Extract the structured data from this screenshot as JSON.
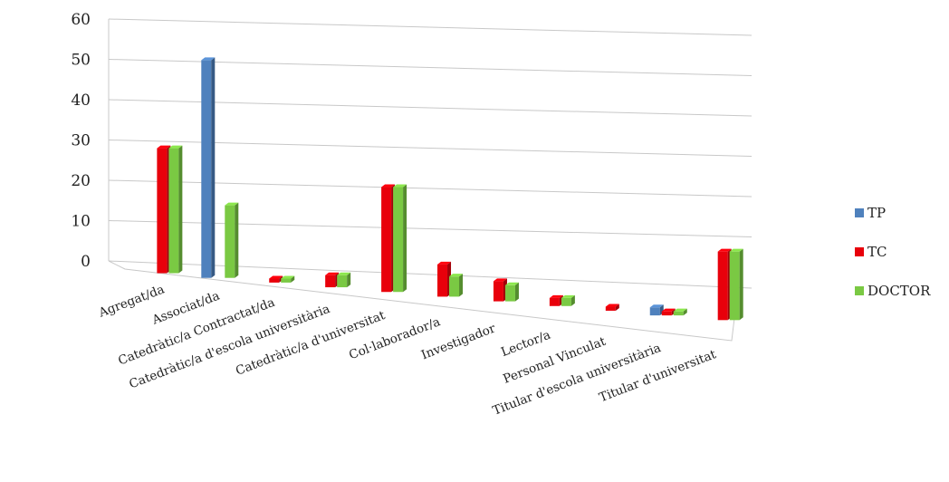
{
  "chart_data": {
    "type": "bar",
    "title": "",
    "xlabel": "",
    "ylabel": "",
    "ylim": [
      0,
      60
    ],
    "yticks": [
      0,
      10,
      20,
      30,
      40,
      50,
      60
    ],
    "grid": true,
    "legend_position": "right",
    "categories": [
      "Agregat/da",
      "Associat/da",
      "Catedràtic/a Contractat/da",
      "Catedràtic/a d'escola universitària",
      "Catedràtic/a d'universitat",
      "Col·laborador/a",
      "Investigador",
      "Lector/a",
      "Personal Vinculat",
      "Titular d'escola universitària",
      "Titular d'universitat"
    ],
    "series": [
      {
        "name": "TP",
        "color": "#4F81BD",
        "values": [
          0,
          54,
          0,
          0,
          0,
          0,
          0,
          0,
          0,
          2,
          0
        ]
      },
      {
        "name": "TC",
        "color": "#E8000B",
        "values": [
          31,
          0,
          1,
          3,
          26,
          8,
          5,
          2,
          1,
          1,
          17
        ]
      },
      {
        "name": "DOCTOR",
        "color": "#7AC943",
        "values": [
          31,
          18,
          1,
          3,
          26,
          5,
          4,
          2,
          0,
          1,
          17
        ]
      }
    ]
  }
}
